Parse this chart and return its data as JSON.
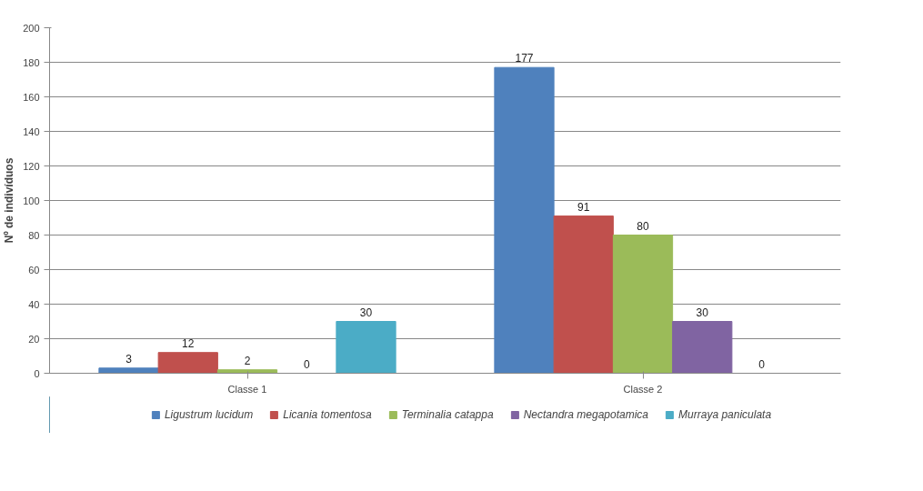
{
  "chart_data": {
    "type": "bar",
    "ylabel": "Nº de indivíduos",
    "categories": [
      "Classe 1",
      "Classe 2"
    ],
    "series": [
      {
        "name": "Ligustrum lucidum",
        "color": "#4f81bd",
        "values": [
          3,
          177
        ]
      },
      {
        "name": "Licania tomentosa",
        "color": "#c0504d",
        "values": [
          12,
          91
        ]
      },
      {
        "name": "Terminalia catappa",
        "color": "#9bbb59",
        "values": [
          2,
          80
        ]
      },
      {
        "name": "Nectandra megapotamica",
        "color": "#8064a2",
        "values": [
          0,
          30
        ]
      },
      {
        "name": "Murraya paniculata",
        "color": "#4bacc6",
        "values": [
          30,
          0
        ]
      }
    ],
    "ylim": [
      0,
      200
    ],
    "yticks": [
      0,
      20,
      40,
      60,
      80,
      100,
      120,
      140,
      160,
      180,
      200
    ],
    "grid": "y",
    "legend": "bottom",
    "data_labels": true
  }
}
